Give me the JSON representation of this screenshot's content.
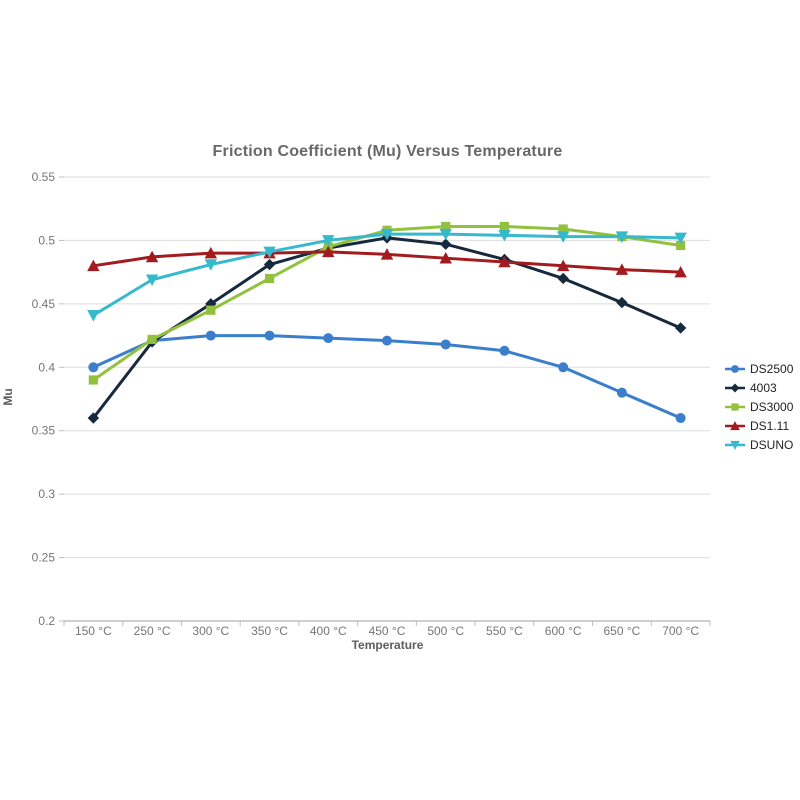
{
  "page": {
    "background": "#ffffff"
  },
  "chart_data": {
    "type": "line",
    "title": "Friction Coefficient (Mu) Versus Temperature",
    "xlabel": "Temperature",
    "ylabel": "Mu",
    "categories": [
      "150 °C",
      "250 °C",
      "300 °C",
      "350 °C",
      "400 °C",
      "450 °C",
      "500 °C",
      "550 °C",
      "600 °C",
      "650 °C",
      "700 °C"
    ],
    "y_ticks": [
      "0.55",
      "0.5",
      "0.45",
      "0.4",
      "0.35",
      "0.3",
      "0.25",
      "0.2"
    ],
    "ylim": [
      0.2,
      0.55
    ],
    "grid": true,
    "legend_position": "right",
    "series": [
      {
        "name": "DS2500",
        "color": "#3b7ecb",
        "marker": "circle",
        "values": [
          0.4,
          0.421,
          0.425,
          0.425,
          0.423,
          0.421,
          0.418,
          0.413,
          0.4,
          0.38,
          0.36
        ]
      },
      {
        "name": "4003",
        "color": "#16293d",
        "marker": "diamond",
        "values": [
          0.36,
          0.42,
          0.45,
          0.481,
          0.494,
          0.502,
          0.497,
          0.485,
          0.47,
          0.451,
          0.431
        ]
      },
      {
        "name": "DS3000",
        "color": "#91c13e",
        "marker": "square",
        "values": [
          0.39,
          0.422,
          0.445,
          0.47,
          0.495,
          0.508,
          0.511,
          0.511,
          0.509,
          0.503,
          0.496
        ]
      },
      {
        "name": "DS1.11",
        "color": "#a31b1e",
        "marker": "triangle-up",
        "values": [
          0.48,
          0.487,
          0.49,
          0.49,
          0.491,
          0.489,
          0.486,
          0.483,
          0.48,
          0.477,
          0.475
        ]
      },
      {
        "name": "DSUNO",
        "color": "#36b9cc",
        "marker": "triangle-down",
        "values": [
          0.441,
          0.469,
          0.481,
          0.491,
          0.5,
          0.505,
          0.505,
          0.504,
          0.503,
          0.503,
          0.502
        ]
      }
    ],
    "colors": {
      "gridline": "#dedede",
      "axis_line": "#bfbfbf",
      "tick_text": "#767676",
      "title_text": "#686868",
      "axis_title_text": "#5d5e60",
      "legend_text": "#232323"
    }
  }
}
